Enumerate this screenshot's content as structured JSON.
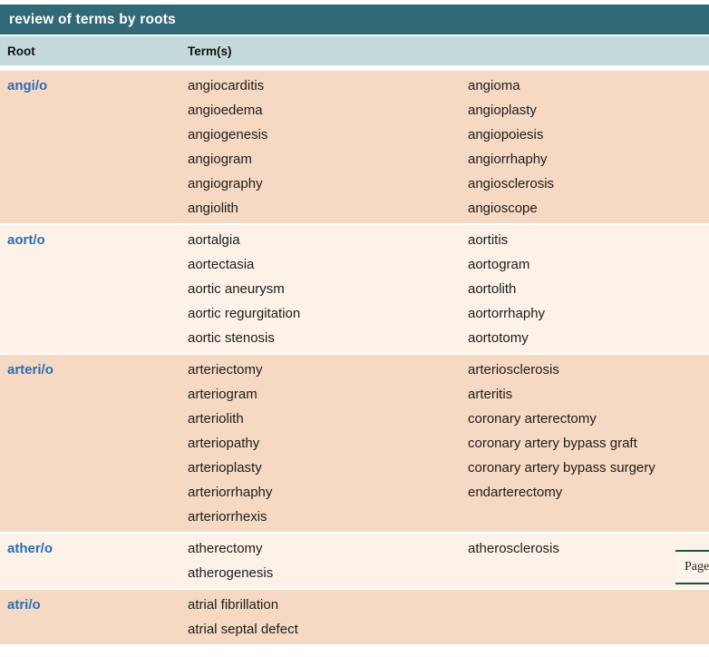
{
  "title": "review of terms by roots",
  "columns": {
    "root": "Root",
    "terms": "Term(s)"
  },
  "page_label": "Page",
  "colors": {
    "header_bg": "#316a76",
    "subheader_bg": "#c3d9db",
    "row_peach": "#f6d9c2",
    "row_cream": "#fdf2e8",
    "root_blue": "#2b6db8",
    "page_border": "#1d5540"
  },
  "rows": [
    {
      "root": "angi/o",
      "col1": [
        "angiocarditis",
        "angioedema",
        "angiogenesis",
        "angiogram",
        "angiography",
        "angiolith"
      ],
      "col2": [
        "angioma",
        "angioplasty",
        "angiopoiesis",
        "angiorrhaphy",
        "angiosclerosis",
        "angioscope"
      ]
    },
    {
      "root": "aort/o",
      "col1": [
        "aortalgia",
        "aortectasia",
        "aortic aneurysm",
        "aortic regurgitation",
        "aortic stenosis"
      ],
      "col2": [
        "aortitis",
        "aortogram",
        "aortolith",
        "aortorrhaphy",
        "aortotomy"
      ]
    },
    {
      "root": "arteri/o",
      "col1": [
        "arteriectomy",
        "arteriogram",
        "arteriolith",
        "arteriopathy",
        "arterioplasty",
        "arteriorrhaphy",
        "arteriorrhexis"
      ],
      "col2": [
        "arteriosclerosis",
        "arteritis",
        "coronary arterectomy",
        "coronary artery bypass graft",
        "coronary artery bypass surgery",
        "endarterectomy"
      ]
    },
    {
      "root": "ather/o",
      "col1": [
        "atherectomy",
        "atherogenesis"
      ],
      "col2": [
        "atherosclerosis"
      ]
    },
    {
      "root": "atri/o",
      "col1": [
        "atrial fibrillation",
        "atrial septal defect"
      ],
      "col2": []
    }
  ]
}
